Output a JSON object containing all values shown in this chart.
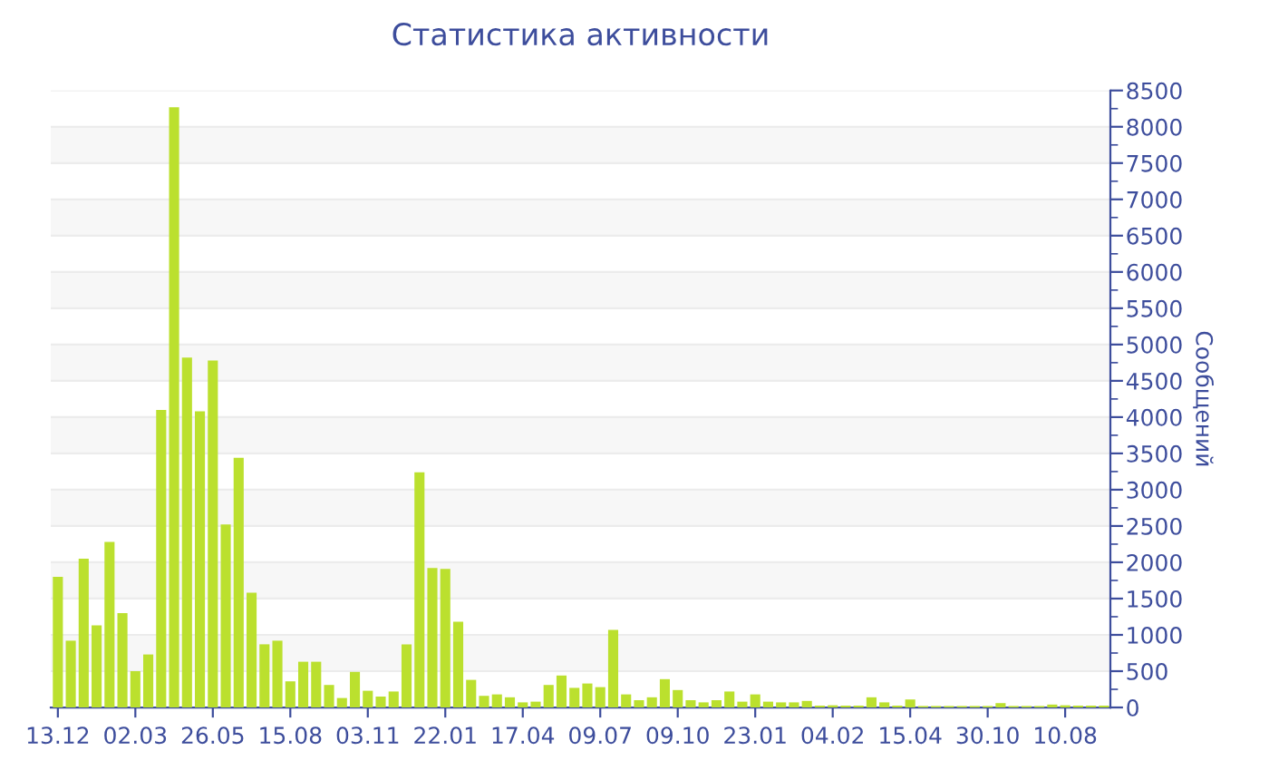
{
  "chart_data": {
    "type": "bar",
    "title": "Статистика активности",
    "ylabel": "Сообщений",
    "categories": [
      "13.12",
      null,
      null,
      null,
      null,
      null,
      "02.03",
      null,
      null,
      null,
      null,
      null,
      "26.05",
      null,
      null,
      null,
      null,
      null,
      "15.08",
      null,
      null,
      null,
      null,
      null,
      "03.11",
      null,
      null,
      null,
      null,
      null,
      "22.01",
      null,
      null,
      null,
      null,
      null,
      "17.04",
      null,
      null,
      null,
      null,
      null,
      "09.07",
      null,
      null,
      null,
      null,
      null,
      "09.10",
      null,
      null,
      null,
      null,
      null,
      "23.01",
      null,
      null,
      null,
      null,
      null,
      "04.02",
      null,
      null,
      null,
      null,
      null,
      "15.04",
      null,
      null,
      null,
      null,
      null,
      "30.10",
      null,
      null,
      null,
      null,
      null,
      "10.08",
      null,
      null,
      null
    ],
    "values": [
      1800,
      920,
      2050,
      1130,
      2280,
      1300,
      500,
      730,
      4100,
      8270,
      4820,
      4080,
      4780,
      2520,
      3440,
      1580,
      870,
      920,
      360,
      630,
      630,
      310,
      130,
      490,
      230,
      150,
      220,
      870,
      3240,
      1920,
      1910,
      1180,
      380,
      160,
      180,
      140,
      70,
      80,
      310,
      440,
      270,
      330,
      280,
      1070,
      180,
      100,
      140,
      390,
      240,
      100,
      70,
      100,
      220,
      80,
      180,
      80,
      70,
      70,
      90,
      25,
      30,
      25,
      25,
      140,
      70,
      25,
      110,
      20,
      20,
      20,
      20,
      20,
      20,
      60,
      20,
      20,
      20,
      40,
      30,
      25,
      25,
      25
    ],
    "color": "#bbe02e",
    "ylim": [
      0,
      8500
    ],
    "yticks": [
      0,
      500,
      1000,
      1500,
      2000,
      2500,
      3000,
      3500,
      4000,
      4500,
      5000,
      5500,
      6000,
      6500,
      7000,
      7500,
      8000,
      8500
    ],
    "grid": "y"
  }
}
